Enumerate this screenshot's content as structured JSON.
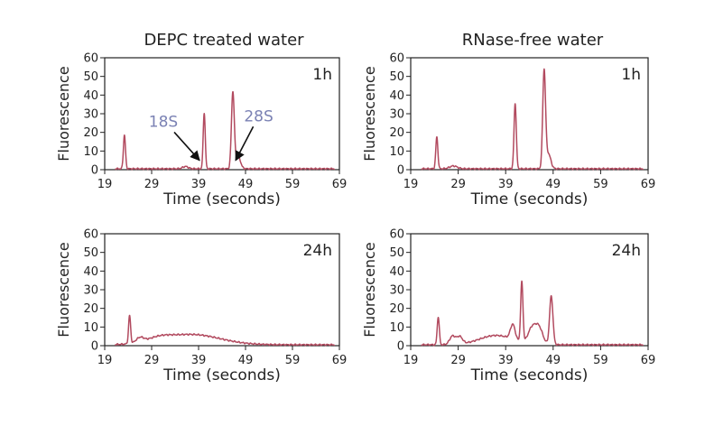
{
  "figure": {
    "column_titles": [
      "DEPC treated water",
      "RNase-free water"
    ]
  },
  "chart_data": [
    {
      "type": "line",
      "title": "DEPC treated water",
      "panel_label": "1h",
      "xlabel": "Time (seconds)",
      "ylabel": "Fluorescence",
      "xlim": [
        19,
        69
      ],
      "ylim": [
        0,
        60
      ],
      "xticks": [
        19,
        29,
        39,
        49,
        59,
        69
      ],
      "yticks": [
        0,
        10,
        20,
        30,
        40,
        50,
        60
      ],
      "grid": false,
      "line_color": "#b24a5f",
      "baseline": 0.5,
      "peaks": [
        {
          "x": 23.2,
          "y": 18,
          "w": 0.22
        },
        {
          "x": 36.2,
          "y": 1.2,
          "w": 0.6
        },
        {
          "x": 40.2,
          "y": 30,
          "w": 0.22
        },
        {
          "x": 46.3,
          "y": 41,
          "w": 0.3
        },
        {
          "x": 47.4,
          "y": 7,
          "w": 0.5
        }
      ],
      "annotations": [
        {
          "text": "18S",
          "label_x": 31.5,
          "label_y": 23,
          "arrow_to_x": 39.2,
          "arrow_to_y": 5
        },
        {
          "text": "28S",
          "label_x": 51.8,
          "label_y": 26,
          "arrow_to_x": 46.9,
          "arrow_to_y": 5
        }
      ]
    },
    {
      "type": "line",
      "title": "RNase-free water",
      "panel_label": "1h",
      "xlabel": "Time (seconds)",
      "ylabel": "Fluorescence",
      "xlim": [
        19,
        69
      ],
      "ylim": [
        0,
        60
      ],
      "xticks": [
        19,
        29,
        39,
        49,
        59,
        69
      ],
      "yticks": [
        0,
        10,
        20,
        30,
        40,
        50,
        60
      ],
      "grid": false,
      "line_color": "#b24a5f",
      "baseline": 0.5,
      "peaks": [
        {
          "x": 24.5,
          "y": 17,
          "w": 0.22
        },
        {
          "x": 28.0,
          "y": 1.5,
          "w": 0.8
        },
        {
          "x": 41.0,
          "y": 35,
          "w": 0.24
        },
        {
          "x": 47.1,
          "y": 52,
          "w": 0.3
        },
        {
          "x": 48.0,
          "y": 8,
          "w": 0.5
        }
      ],
      "annotations": []
    },
    {
      "type": "line",
      "panel_label": "24h",
      "xlabel": "Time (seconds)",
      "ylabel": "Fluorescence",
      "xlim": [
        19,
        69
      ],
      "ylim": [
        0,
        60
      ],
      "xticks": [
        19,
        29,
        39,
        49,
        59,
        69
      ],
      "yticks": [
        0,
        10,
        20,
        30,
        40,
        50,
        60
      ],
      "grid": false,
      "line_color": "#b24a5f",
      "baseline": 0.5,
      "peaks": [
        {
          "x": 24.3,
          "y": 15,
          "w": 0.22
        },
        {
          "x": 26.5,
          "y": 2.5,
          "w": 0.8
        },
        {
          "x": 37.5,
          "y": 5.5,
          "w": 6.0
        },
        {
          "x": 30.5,
          "y": 2.0,
          "w": 2.5
        }
      ],
      "annotations": []
    },
    {
      "type": "line",
      "panel_label": "24h",
      "xlabel": "Time (seconds)",
      "ylabel": "Fluorescence",
      "xlim": [
        19,
        69
      ],
      "ylim": [
        0,
        60
      ],
      "xticks": [
        19,
        29,
        39,
        49,
        59,
        69
      ],
      "yticks": [
        0,
        10,
        20,
        30,
        40,
        50,
        60
      ],
      "grid": false,
      "line_color": "#b24a5f",
      "baseline": 0.5,
      "peaks": [
        {
          "x": 24.8,
          "y": 15,
          "w": 0.22
        },
        {
          "x": 27.8,
          "y": 4.5,
          "w": 0.6
        },
        {
          "x": 29.3,
          "y": 4.0,
          "w": 0.6
        },
        {
          "x": 37.0,
          "y": 5.0,
          "w": 3.5
        },
        {
          "x": 40.5,
          "y": 8.0,
          "w": 0.5
        },
        {
          "x": 42.4,
          "y": 32,
          "w": 0.24
        },
        {
          "x": 44.5,
          "y": 8.0,
          "w": 0.8
        },
        {
          "x": 46.0,
          "y": 9.0,
          "w": 0.8
        },
        {
          "x": 48.6,
          "y": 26,
          "w": 0.35
        }
      ],
      "annotations": []
    }
  ]
}
